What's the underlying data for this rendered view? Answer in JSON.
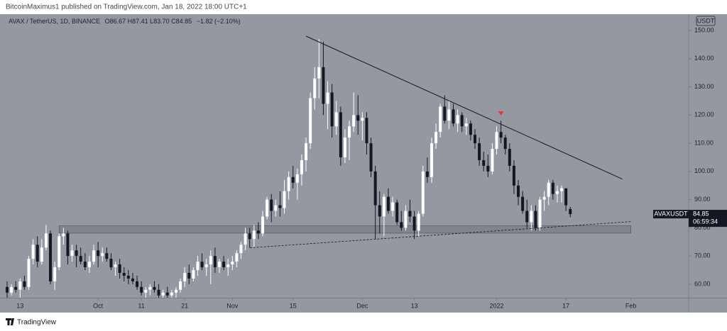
{
  "chart_data": {
    "type": "candlestick",
    "byline": "BitcoinMaximus1 published on TradingView.com, Jan 18, 2022 18:00 UTC+1",
    "title": "AVAX / TetherUS, 1D, BINANCE",
    "legend": "O86.67 H87.41 L83.70 C84.85",
    "change": "−1.82 (−2.10%)",
    "currency": "USDT",
    "ticker": "AVAXUSDT",
    "countdown": "06:59:34",
    "footer": "TradingView",
    "up_color": "#ffffff",
    "down_color": "#131722",
    "background": "#9598a1",
    "grid": false,
    "xlim": [
      "2021-09-10",
      "2022-02-14"
    ],
    "xticks": [
      {
        "value": "2021-09-13",
        "label": "13"
      },
      {
        "value": "2021-10-01",
        "label": "Oct"
      },
      {
        "value": "2021-10-11",
        "label": "11"
      },
      {
        "value": "2021-10-21",
        "label": "21"
      },
      {
        "value": "2021-11-01",
        "label": "Nov"
      },
      {
        "value": "2021-11-15",
        "label": "15"
      },
      {
        "value": "2021-12-01",
        "label": "Dec"
      },
      {
        "value": "2021-12-13",
        "label": "13"
      },
      {
        "value": "2022-01-01",
        "label": "2022"
      },
      {
        "value": "2022-01-17",
        "label": "17"
      },
      {
        "value": "2022-02-01",
        "label": "Feb"
      }
    ],
    "ylim": [
      55.2,
      155.8
    ],
    "yticks": [
      {
        "value": 60,
        "label": "60.00"
      },
      {
        "value": 70,
        "label": "70.00"
      },
      {
        "value": 80,
        "label": "80.00"
      },
      {
        "value": 90,
        "label": "90.00"
      },
      {
        "value": 100,
        "label": "100.00"
      },
      {
        "value": 110,
        "label": "110.00"
      },
      {
        "value": 120,
        "label": "120.00"
      },
      {
        "value": 130,
        "label": "130.00"
      },
      {
        "value": 140,
        "label": "140.00"
      },
      {
        "value": 150,
        "label": "150.00"
      }
    ],
    "x": [
      "2021-09-10",
      "2021-09-11",
      "2021-09-12",
      "2021-09-13",
      "2021-09-14",
      "2021-09-15",
      "2021-09-16",
      "2021-09-17",
      "2021-09-18",
      "2021-09-19",
      "2021-09-20",
      "2021-09-21",
      "2021-09-22",
      "2021-09-23",
      "2021-09-24",
      "2021-09-25",
      "2021-09-26",
      "2021-09-27",
      "2021-09-28",
      "2021-09-29",
      "2021-09-30",
      "2021-10-01",
      "2021-10-02",
      "2021-10-03",
      "2021-10-04",
      "2021-10-05",
      "2021-10-06",
      "2021-10-07",
      "2021-10-08",
      "2021-10-09",
      "2021-10-10",
      "2021-10-11",
      "2021-10-12",
      "2021-10-13",
      "2021-10-14",
      "2021-10-15",
      "2021-10-16",
      "2021-10-17",
      "2021-10-18",
      "2021-10-19",
      "2021-10-20",
      "2021-10-21",
      "2021-10-22",
      "2021-10-23",
      "2021-10-24",
      "2021-10-25",
      "2021-10-26",
      "2021-10-27",
      "2021-10-28",
      "2021-10-29",
      "2021-10-30",
      "2021-10-31",
      "2021-11-01",
      "2021-11-02",
      "2021-11-03",
      "2021-11-04",
      "2021-11-05",
      "2021-11-06",
      "2021-11-07",
      "2021-11-08",
      "2021-11-09",
      "2021-11-10",
      "2021-11-11",
      "2021-11-12",
      "2021-11-13",
      "2021-11-14",
      "2021-11-15",
      "2021-11-16",
      "2021-11-17",
      "2021-11-18",
      "2021-11-19",
      "2021-11-20",
      "2021-11-21",
      "2021-11-22",
      "2021-11-23",
      "2021-11-24",
      "2021-11-25",
      "2021-11-26",
      "2021-11-27",
      "2021-11-28",
      "2021-11-29",
      "2021-11-30",
      "2021-12-01",
      "2021-12-02",
      "2021-12-03",
      "2021-12-04",
      "2021-12-05",
      "2021-12-06",
      "2021-12-07",
      "2021-12-08",
      "2021-12-09",
      "2021-12-10",
      "2021-12-11",
      "2021-12-12",
      "2021-12-13",
      "2021-12-14",
      "2021-12-15",
      "2021-12-16",
      "2021-12-17",
      "2021-12-18",
      "2021-12-19",
      "2021-12-20",
      "2021-12-21",
      "2021-12-22",
      "2021-12-23",
      "2021-12-24",
      "2021-12-25",
      "2021-12-26",
      "2021-12-27",
      "2021-12-28",
      "2021-12-29",
      "2021-12-30",
      "2021-12-31",
      "2022-01-01",
      "2022-01-02",
      "2022-01-03",
      "2022-01-04",
      "2022-01-05",
      "2022-01-06",
      "2022-01-07",
      "2022-01-08",
      "2022-01-09",
      "2022-01-10",
      "2022-01-11",
      "2022-01-12",
      "2022-01-13",
      "2022-01-14",
      "2022-01-15",
      "2022-01-16",
      "2022-01-17",
      "2022-01-18"
    ],
    "ohlc": [
      [
        59,
        61,
        55,
        57
      ],
      [
        57,
        60,
        56,
        59
      ],
      [
        59,
        61,
        57,
        58
      ],
      [
        58,
        62,
        55,
        61
      ],
      [
        61,
        63,
        58,
        59
      ],
      [
        59,
        70,
        58,
        69
      ],
      [
        69,
        76,
        67,
        74
      ],
      [
        74,
        77,
        66,
        68
      ],
      [
        68,
        76,
        67,
        73
      ],
      [
        73,
        81,
        72,
        78
      ],
      [
        78,
        79,
        60,
        61
      ],
      [
        61,
        68,
        58,
        66
      ],
      [
        66,
        78,
        65,
        77
      ],
      [
        77,
        80,
        74,
        78
      ],
      [
        78,
        79,
        67,
        70
      ],
      [
        70,
        74,
        68,
        72
      ],
      [
        72,
        74,
        66,
        70
      ],
      [
        70,
        73,
        67,
        68
      ],
      [
        68,
        71,
        65,
        66
      ],
      [
        66,
        70,
        64,
        68
      ],
      [
        68,
        74,
        67,
        72
      ],
      [
        72,
        75,
        66,
        70
      ],
      [
        70,
        73,
        68,
        71
      ],
      [
        71,
        73,
        68,
        69
      ],
      [
        69,
        71,
        65,
        66
      ],
      [
        66,
        68,
        63,
        67
      ],
      [
        67,
        69,
        62,
        64
      ],
      [
        64,
        66,
        61,
        63
      ],
      [
        63,
        65,
        60,
        62
      ],
      [
        62,
        64,
        60,
        61
      ],
      [
        61,
        63,
        58,
        59
      ],
      [
        59,
        61,
        56,
        57
      ],
      [
        57,
        59,
        55,
        58
      ],
      [
        58,
        60,
        56,
        59
      ],
      [
        59,
        61,
        57,
        58
      ],
      [
        58,
        60,
        55,
        56
      ],
      [
        56,
        58,
        54,
        57
      ],
      [
        57,
        59,
        55,
        56
      ],
      [
        56,
        58,
        54,
        57
      ],
      [
        57,
        59,
        55,
        58
      ],
      [
        58,
        62,
        57,
        61
      ],
      [
        61,
        66,
        59,
        64
      ],
      [
        64,
        67,
        60,
        62
      ],
      [
        62,
        66,
        61,
        65
      ],
      [
        65,
        70,
        63,
        68
      ],
      [
        68,
        71,
        65,
        66
      ],
      [
        66,
        69,
        63,
        67
      ],
      [
        67,
        72,
        60,
        70
      ],
      [
        70,
        73,
        64,
        66
      ],
      [
        66,
        69,
        64,
        68
      ],
      [
        68,
        70,
        65,
        66
      ],
      [
        66,
        69,
        63,
        67
      ],
      [
        67,
        70,
        65,
        68
      ],
      [
        68,
        72,
        66,
        71
      ],
      [
        71,
        75,
        69,
        74
      ],
      [
        74,
        80,
        72,
        78
      ],
      [
        78,
        80,
        73,
        76
      ],
      [
        76,
        81,
        73,
        79
      ],
      [
        79,
        82,
        76,
        78
      ],
      [
        78,
        86,
        77,
        84
      ],
      [
        84,
        91,
        83,
        90
      ],
      [
        90,
        92,
        82,
        86
      ],
      [
        86,
        90,
        84,
        88
      ],
      [
        88,
        93,
        84,
        87
      ],
      [
        87,
        97,
        85,
        93
      ],
      [
        93,
        100,
        90,
        98
      ],
      [
        98,
        102,
        94,
        96
      ],
      [
        96,
        101,
        90,
        99
      ],
      [
        99,
        106,
        95,
        104
      ],
      [
        104,
        112,
        100,
        110
      ],
      [
        110,
        128,
        108,
        126
      ],
      [
        126,
        137,
        122,
        133
      ],
      [
        133,
        147,
        126,
        137
      ],
      [
        137,
        146,
        120,
        124
      ],
      [
        124,
        132,
        115,
        128
      ],
      [
        128,
        131,
        112,
        116
      ],
      [
        116,
        125,
        113,
        121
      ],
      [
        121,
        123,
        102,
        105
      ],
      [
        105,
        115,
        103,
        112
      ],
      [
        112,
        118,
        104,
        116
      ],
      [
        116,
        128,
        114,
        120
      ],
      [
        120,
        127,
        113,
        118
      ],
      [
        118,
        121,
        111,
        119
      ],
      [
        119,
        121,
        106,
        110
      ],
      [
        110,
        112,
        98,
        100
      ],
      [
        100,
        102,
        76,
        88
      ],
      [
        88,
        93,
        78,
        84
      ],
      [
        84,
        92,
        77,
        91
      ],
      [
        91,
        94,
        85,
        86
      ],
      [
        86,
        91,
        84,
        89
      ],
      [
        89,
        90,
        81,
        82
      ],
      [
        82,
        86,
        79,
        80
      ],
      [
        80,
        88,
        79,
        86
      ],
      [
        86,
        90,
        82,
        84
      ],
      [
        84,
        86,
        76,
        79
      ],
      [
        79,
        86,
        77,
        85
      ],
      [
        85,
        102,
        84,
        100
      ],
      [
        100,
        105,
        96,
        98
      ],
      [
        98,
        112,
        96,
        110
      ],
      [
        110,
        117,
        108,
        114
      ],
      [
        114,
        124,
        112,
        123
      ],
      [
        123,
        127,
        117,
        118
      ],
      [
        118,
        125,
        115,
        122
      ],
      [
        122,
        124,
        116,
        117
      ],
      [
        117,
        122,
        114,
        120
      ],
      [
        120,
        121,
        114,
        116
      ],
      [
        116,
        119,
        113,
        117
      ],
      [
        117,
        118,
        111,
        113
      ],
      [
        113,
        115,
        108,
        110
      ],
      [
        110,
        112,
        102,
        104
      ],
      [
        104,
        107,
        100,
        102
      ],
      [
        102,
        106,
        98,
        100
      ],
      [
        100,
        110,
        99,
        108
      ],
      [
        108,
        116,
        106,
        114
      ],
      [
        114,
        118,
        110,
        112
      ],
      [
        112,
        113,
        106,
        108
      ],
      [
        108,
        110,
        100,
        102
      ],
      [
        102,
        104,
        92,
        95
      ],
      [
        95,
        97,
        88,
        91
      ],
      [
        91,
        93,
        85,
        86
      ],
      [
        86,
        90,
        80,
        82
      ],
      [
        82,
        88,
        79,
        86
      ],
      [
        86,
        88,
        79,
        80
      ],
      [
        80,
        91,
        79,
        90
      ],
      [
        90,
        93,
        86,
        91
      ],
      [
        91,
        97,
        88,
        96
      ],
      [
        96,
        97,
        90,
        92
      ],
      [
        92,
        95,
        89,
        93
      ],
      [
        93,
        95,
        89,
        94
      ],
      [
        94,
        94,
        86,
        88
      ],
      [
        86.67,
        87.41,
        83.7,
        84.85
      ]
    ],
    "annotations": {
      "resistance": {
        "x": [
          "2021-11-18",
          "2022-01-30"
        ],
        "y": [
          148,
          97.3
        ],
        "color": "#131722"
      },
      "support": {
        "x": [
          "2021-11-05",
          "2022-02-01"
        ],
        "y": [
          72.9,
          82.2
        ],
        "color": "#131722"
      },
      "zone": {
        "x": [
          "2021-09-22",
          "2022-02-01"
        ],
        "y": [
          78.1,
          80.7
        ],
        "color": "#7b7e87"
      },
      "marker": {
        "x": "2022-01-02",
        "y": 120.6,
        "color": "#e53935"
      }
    }
  }
}
